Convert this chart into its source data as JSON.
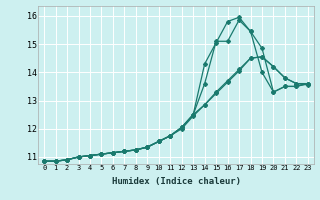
{
  "title": "",
  "xlabel": "Humidex (Indice chaleur)",
  "ylabel": "",
  "bg_color": "#cdf0f0",
  "line_color": "#1a7a6e",
  "grid_color": "#ffffff",
  "xlim": [
    -0.5,
    23.5
  ],
  "ylim": [
    10.75,
    16.35
  ],
  "xticks": [
    0,
    1,
    2,
    3,
    4,
    5,
    6,
    7,
    8,
    9,
    10,
    11,
    12,
    13,
    14,
    15,
    16,
    17,
    18,
    19,
    20,
    21,
    22,
    23
  ],
  "yticks": [
    11,
    12,
    13,
    14,
    15,
    16
  ],
  "series": [
    [
      10.85,
      10.85,
      10.9,
      11.0,
      11.05,
      11.1,
      11.15,
      11.2,
      11.25,
      11.35,
      11.55,
      11.75,
      12.05,
      12.5,
      13.6,
      15.1,
      15.1,
      15.85,
      15.45,
      14.85,
      13.3,
      13.5,
      13.5,
      13.6
    ],
    [
      10.85,
      10.85,
      10.9,
      11.0,
      11.05,
      11.1,
      11.15,
      11.2,
      11.25,
      11.35,
      11.55,
      11.75,
      12.05,
      12.5,
      14.3,
      15.05,
      15.8,
      15.95,
      15.45,
      14.0,
      13.3,
      13.5,
      13.5,
      13.6
    ],
    [
      10.85,
      10.85,
      10.9,
      11.0,
      11.05,
      11.1,
      11.15,
      11.2,
      11.25,
      11.35,
      11.55,
      11.75,
      12.05,
      12.5,
      12.85,
      13.3,
      13.7,
      14.1,
      14.5,
      14.55,
      14.2,
      13.8,
      13.6,
      13.6
    ],
    [
      10.85,
      10.85,
      10.9,
      11.0,
      11.05,
      11.1,
      11.15,
      11.2,
      11.25,
      11.35,
      11.55,
      11.75,
      12.0,
      12.45,
      12.85,
      13.25,
      13.65,
      14.05,
      14.5,
      14.55,
      14.2,
      13.8,
      13.6,
      13.55
    ]
  ]
}
